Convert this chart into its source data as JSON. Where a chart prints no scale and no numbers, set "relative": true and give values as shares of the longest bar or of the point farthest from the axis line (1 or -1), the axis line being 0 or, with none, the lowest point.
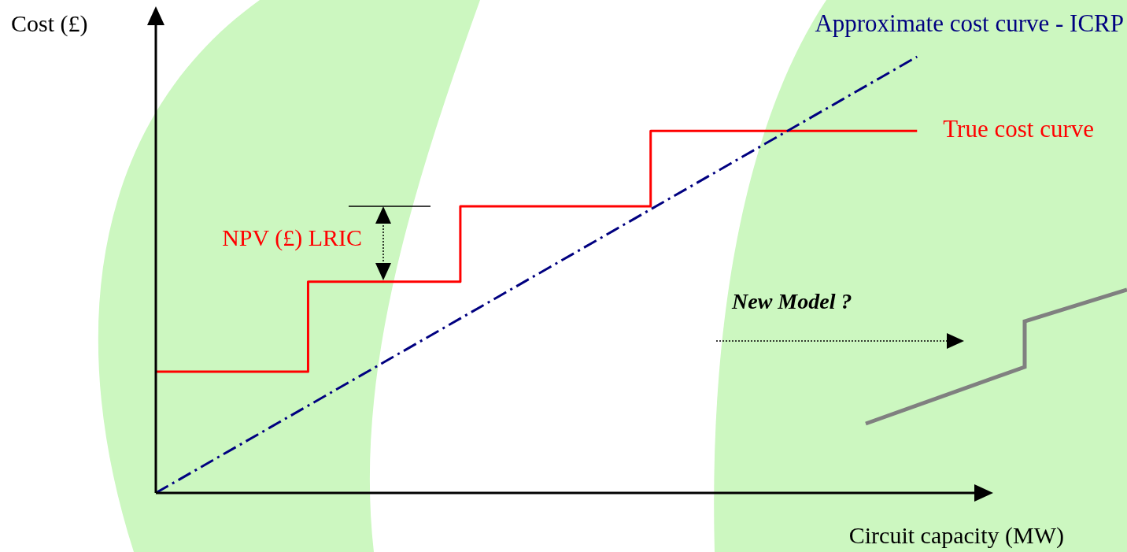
{
  "chart_data": {
    "type": "line",
    "relative": true,
    "legend": false,
    "grid": false,
    "tick_labels": false,
    "marker": "none",
    "ylabel": "Cost (£)",
    "xlabel": "Circuit capacity (MW)",
    "categories": [
      null,
      null,
      null,
      null,
      null,
      null,
      null,
      null,
      null,
      null,
      null,
      null,
      null,
      null,
      null,
      null,
      null,
      null,
      null,
      null,
      null
    ],
    "series": [
      {
        "name": "Approximate cost curve - ICRP",
        "type": "line",
        "line_style": "dashed",
        "color": "#000080",
        "values": [
          0,
          0.05,
          0.1,
          0.15,
          0.2,
          0.25,
          0.3,
          0.35,
          0.4,
          0.45,
          0.5,
          0.55,
          0.6,
          0.65,
          0.7,
          0.75,
          0.8,
          0.85,
          0.9,
          0.95,
          1
        ]
      },
      {
        "name": "True cost curve",
        "type": "step",
        "line_style": "solid",
        "color": "#ff0000",
        "values": [
          0.278,
          0.278,
          0.278,
          0.278,
          0.278,
          0.484,
          0.484,
          0.484,
          0.484,
          0.657,
          0.657,
          0.657,
          0.657,
          0.657,
          0.83,
          0.83,
          0.83,
          0.83,
          0.83,
          0.83,
          0.83
        ]
      }
    ],
    "annotations": [
      "NPV (£) LRIC",
      "New Model ?"
    ]
  }
}
